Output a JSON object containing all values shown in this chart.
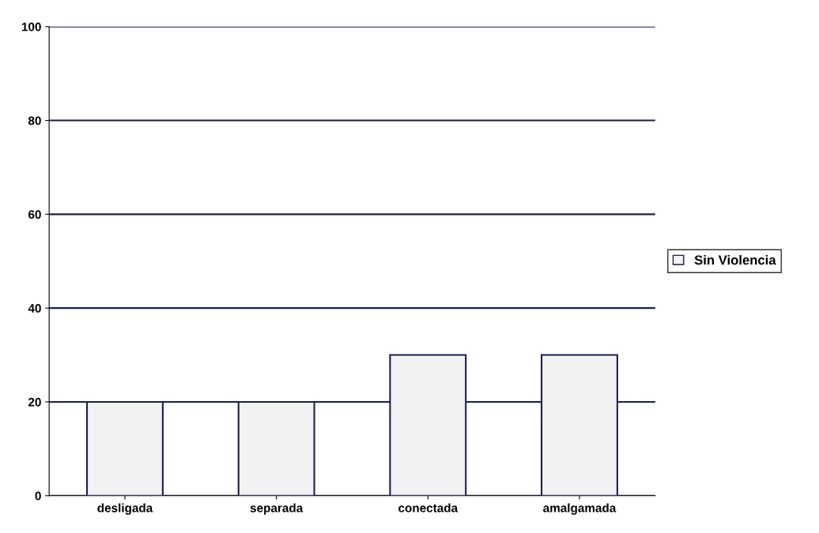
{
  "chart_data": {
    "type": "bar",
    "categories": [
      "desligada",
      "separada",
      "conectada",
      "amalgamada"
    ],
    "series": [
      {
        "name": "Sin Violencia",
        "color": "#f2f2f2",
        "values": [
          20,
          20,
          30,
          30
        ]
      }
    ],
    "ylim": [
      0,
      100
    ],
    "yticks": [
      0,
      20,
      40,
      60,
      80,
      100
    ],
    "grid": "y",
    "legend": "right"
  }
}
